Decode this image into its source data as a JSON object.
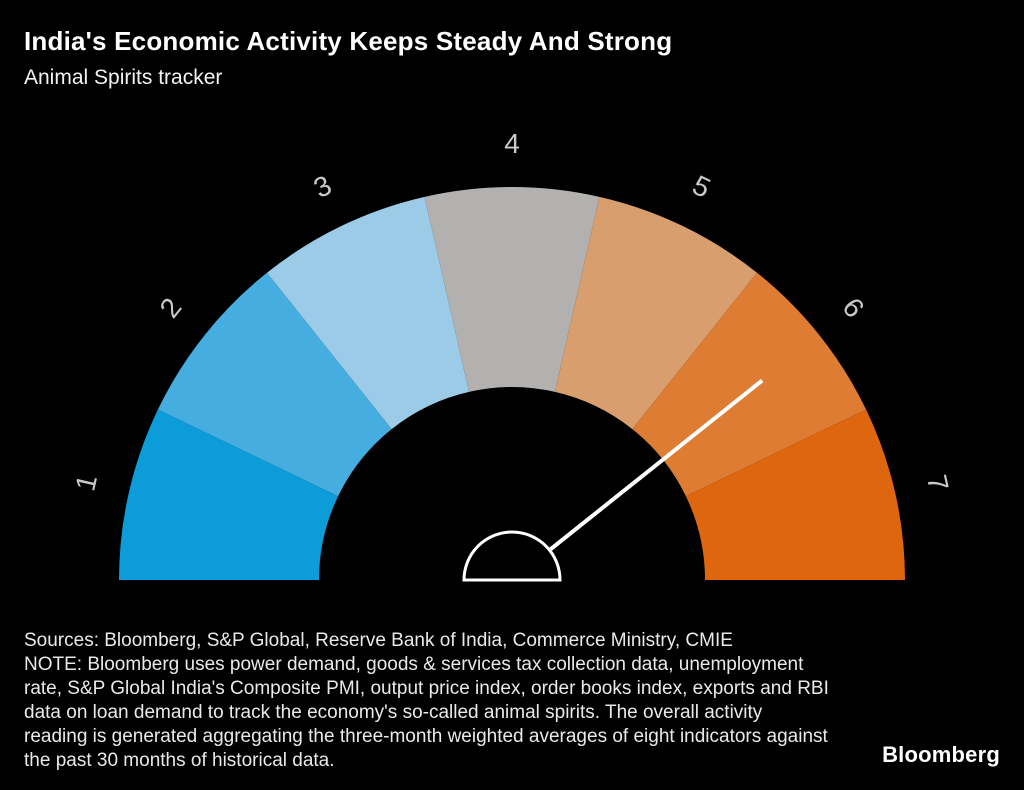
{
  "header": {
    "title": "India's Economic Activity Keeps Steady And Strong",
    "subtitle": "Animal Spirits tracker"
  },
  "footer": {
    "sources": "Sources: Bloomberg, S&P Global, Reserve Bank of India, Commerce Ministry, CMIE",
    "note": "NOTE: Bloomberg uses power demand, goods & services tax collection data, unemployment rate, S&P Global India's Composite PMI, output price index, order books index, exports and RBI data on loan demand to track the economy's so-called animal spirits. The overall activity reading is generated aggregating the three-month weighted averages of eight indicators against the past 30 months of historical data.",
    "logo": "Bloomberg"
  },
  "chart_data": {
    "type": "gauge",
    "title": "India's Economic Activity Keeps Steady And Strong",
    "subtitle": "Animal Spirits tracker",
    "scale_min": 1,
    "scale_max": 7,
    "tick_labels": [
      "1",
      "2",
      "3",
      "4",
      "5",
      "6",
      "7"
    ],
    "segments": [
      {
        "label": "1",
        "color": "#0d9cda"
      },
      {
        "label": "2",
        "color": "#45ade0"
      },
      {
        "label": "3",
        "color": "#9ccbe7"
      },
      {
        "label": "4",
        "color": "#b2b1b0"
      },
      {
        "label": "5",
        "color": "#d99e6e"
      },
      {
        "label": "6",
        "color": "#df7c33"
      },
      {
        "label": "7",
        "color": "#de660e"
      }
    ],
    "needle_value": 6,
    "needle_color": "#ffffff",
    "hub_fill": "#000000",
    "hub_stroke": "#ffffff",
    "tick_label_color": "#c9c9c9",
    "background": "#000000",
    "legend": "off",
    "grid": "off"
  }
}
